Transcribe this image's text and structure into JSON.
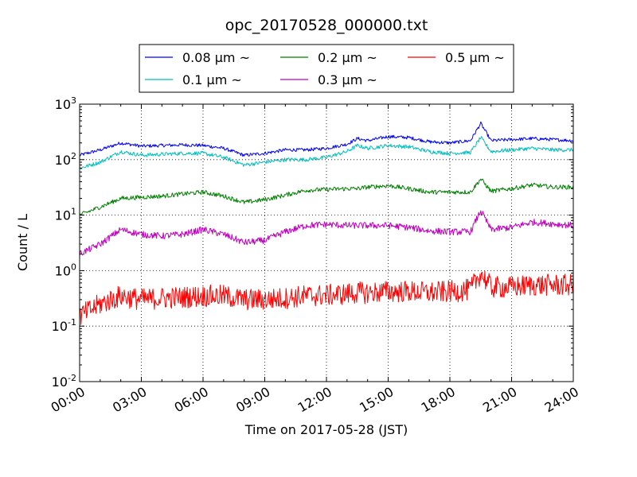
{
  "chart_data": {
    "type": "line",
    "title": "opc_20170528_000000.txt",
    "xlabel": "Time on 2017-05-28 (JST)",
    "ylabel": "Count / L",
    "xlim": [
      "00:00",
      "24:00"
    ],
    "ylim": [
      0.01,
      1000
    ],
    "yscale": "log",
    "grid": true,
    "legend_position": "top-center, outside plot",
    "x_tick_labels": [
      "00:00",
      "03:00",
      "06:00",
      "09:00",
      "12:00",
      "15:00",
      "18:00",
      "21:00",
      "24:00"
    ],
    "y_tick_labels": [
      {
        "base": "10",
        "exp": "-2"
      },
      {
        "base": "10",
        "exp": "-1"
      },
      {
        "base": "10",
        "exp": "0"
      },
      {
        "base": "10",
        "exp": "1"
      },
      {
        "base": "10",
        "exp": "2"
      },
      {
        "base": "10",
        "exp": "3"
      }
    ],
    "x_hours": [
      0,
      1,
      2,
      3,
      4,
      5,
      6,
      7,
      8,
      9,
      10,
      11,
      12,
      13,
      13.5,
      14,
      15,
      16,
      17,
      18,
      19,
      19.5,
      20,
      21,
      22,
      23,
      24
    ],
    "series": [
      {
        "name": "0.08 μm ~",
        "color": "#0000ff",
        "noise": 0.03,
        "values": [
          120,
          150,
          200,
          175,
          180,
          185,
          180,
          160,
          120,
          130,
          150,
          150,
          160,
          190,
          240,
          220,
          260,
          250,
          210,
          200,
          220,
          450,
          220,
          230,
          240,
          230,
          220
        ]
      },
      {
        "name": "0.1 μm ~",
        "color": "#00bfbf",
        "noise": 0.035,
        "values": [
          70,
          90,
          140,
          120,
          125,
          130,
          130,
          110,
          80,
          90,
          100,
          100,
          110,
          140,
          180,
          160,
          180,
          170,
          140,
          130,
          135,
          250,
          140,
          150,
          160,
          150,
          150
        ]
      },
      {
        "name": "0.2 μm ~",
        "color": "#008000",
        "noise": 0.04,
        "values": [
          10,
          14,
          20,
          21,
          22,
          24,
          26,
          22,
          17,
          19,
          23,
          28,
          29,
          30,
          30,
          32,
          34,
          30,
          26,
          26,
          26,
          45,
          27,
          30,
          35,
          32,
          32
        ]
      },
      {
        "name": "0.3 μm ~",
        "color": "#bf00bf",
        "noise": 0.06,
        "values": [
          2,
          3,
          5.5,
          4.5,
          4.2,
          4.5,
          5.5,
          4.5,
          3.2,
          3.5,
          5,
          6.5,
          6.8,
          6.5,
          6.5,
          6.5,
          6.5,
          6,
          5.2,
          5,
          5,
          12,
          5.5,
          6,
          7.5,
          7,
          6.5
        ]
      },
      {
        "name": "0.5 μm ~",
        "color": "#ff0000",
        "noise": 0.2,
        "values": [
          0.15,
          0.25,
          0.35,
          0.3,
          0.32,
          0.33,
          0.35,
          0.35,
          0.3,
          0.3,
          0.32,
          0.35,
          0.36,
          0.38,
          0.4,
          0.4,
          0.42,
          0.42,
          0.4,
          0.42,
          0.45,
          0.9,
          0.5,
          0.5,
          0.55,
          0.55,
          0.55
        ]
      }
    ]
  }
}
